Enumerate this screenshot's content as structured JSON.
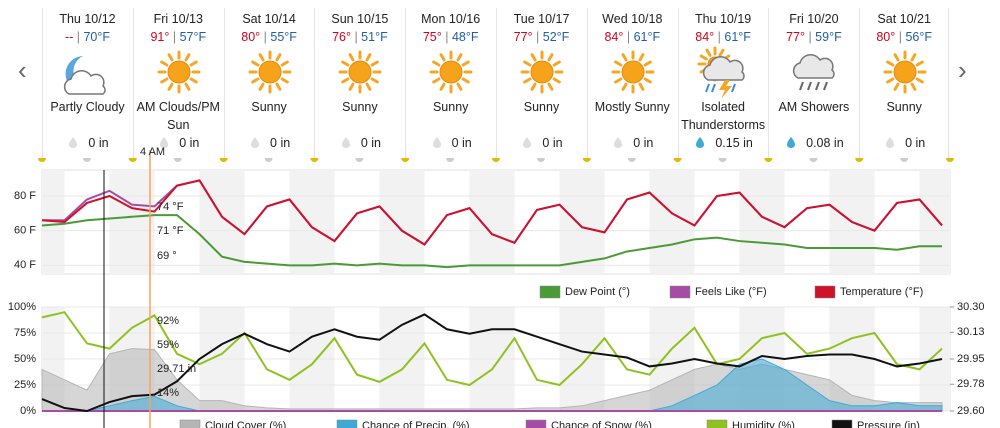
{
  "days": [
    {
      "date": "Thu 10/12",
      "high": "--",
      "low": "70°F",
      "condition": "Partly Cloudy",
      "precip": "0 in"
    },
    {
      "date": "Fri 10/13",
      "high": "91°",
      "low": "57°F",
      "condition": "AM Clouds/PM Sun",
      "precip": "0 in"
    },
    {
      "date": "Sat 10/14",
      "high": "80°",
      "low": "55°F",
      "condition": "Sunny",
      "precip": "0 in"
    },
    {
      "date": "Sun 10/15",
      "high": "76°",
      "low": "51°F",
      "condition": "Sunny",
      "precip": "0 in"
    },
    {
      "date": "Mon 10/16",
      "high": "75°",
      "low": "48°F",
      "condition": "Sunny",
      "precip": "0 in"
    },
    {
      "date": "Tue 10/17",
      "high": "77°",
      "low": "52°F",
      "condition": "Sunny",
      "precip": "0 in"
    },
    {
      "date": "Wed 10/18",
      "high": "84°",
      "low": "61°F",
      "condition": "Mostly Sunny",
      "precip": "0 in"
    },
    {
      "date": "Thu 10/19",
      "high": "84°",
      "low": "61°F",
      "condition": "Isolated Thunderstorms",
      "precip": "0.15 in"
    },
    {
      "date": "Fri 10/20",
      "high": "77°",
      "low": "59°F",
      "condition": "AM Showers",
      "precip": "0.08 in"
    },
    {
      "date": "Sat 10/21",
      "high": "80°",
      "low": "56°F",
      "condition": "Sunny",
      "precip": "0 in"
    }
  ],
  "hover_time": "4 AM",
  "chart_data": [
    {
      "type": "line",
      "ylim": [
        35,
        95
      ],
      "yticks": [
        {
          "value": 40,
          "label": "40 F"
        },
        {
          "value": 60,
          "label": "60 F"
        },
        {
          "value": 80,
          "label": "80 F"
        }
      ],
      "annotations": [
        "74 °F",
        "71 °F",
        "69 °"
      ],
      "series": [
        {
          "name": "Dew Point (°)",
          "color": "#4a9a38",
          "values": [
            63,
            64,
            66,
            67,
            68,
            69,
            69,
            58,
            45,
            42,
            41,
            40,
            40,
            41,
            40,
            41,
            40,
            40,
            39,
            40,
            40,
            40,
            40,
            40,
            42,
            44,
            48,
            50,
            52,
            55,
            56,
            54,
            53,
            52,
            50,
            50,
            50,
            50,
            49,
            51,
            51
          ]
        },
        {
          "name": "Feels Like (°F)",
          "color": "#a64ca6",
          "values": [
            66,
            66,
            78,
            83,
            75,
            74,
            86,
            89,
            68,
            58,
            74,
            78,
            62,
            54,
            70,
            74,
            60,
            52,
            69,
            73,
            58,
            53,
            72,
            75,
            62,
            59,
            78,
            82,
            70,
            63,
            80,
            82,
            68,
            62,
            73,
            75,
            65,
            60,
            76,
            78,
            63
          ]
        },
        {
          "name": "Temperature (°F)",
          "color": "#d0112b",
          "values": [
            66,
            65,
            76,
            80,
            73,
            71,
            86,
            89,
            68,
            58,
            74,
            78,
            62,
            54,
            70,
            74,
            60,
            52,
            69,
            73,
            58,
            53,
            72,
            75,
            62,
            59,
            78,
            82,
            70,
            63,
            80,
            82,
            68,
            62,
            73,
            75,
            65,
            60,
            76,
            78,
            63
          ]
        }
      ]
    },
    {
      "type": "line",
      "ylim": [
        0,
        100
      ],
      "yticks": [
        {
          "value": 0,
          "label": "0%"
        },
        {
          "value": 25,
          "label": "25%"
        },
        {
          "value": 50,
          "label": "50%"
        },
        {
          "value": 75,
          "label": "75%"
        },
        {
          "value": 100,
          "label": "100%"
        }
      ],
      "y2lim": [
        29.6,
        30.3
      ],
      "y2ticks": [
        {
          "value": 29.6,
          "label": "29.60"
        },
        29.78,
        29.95,
        30.13,
        {
          "value": 30.3,
          "label": "30.30"
        }
      ],
      "annotations": [
        "92%",
        "59%",
        "29.71 in",
        "14%"
      ],
      "series": [
        {
          "name": "Cloud Cover (%)",
          "color": "#b5b5b5",
          "area": true,
          "values": [
            40,
            30,
            20,
            55,
            60,
            59,
            30,
            10,
            10,
            5,
            3,
            2,
            2,
            2,
            2,
            2,
            2,
            2,
            2,
            2,
            2,
            2,
            3,
            3,
            5,
            10,
            15,
            20,
            30,
            40,
            45,
            40,
            45,
            40,
            35,
            30,
            15,
            10,
            8,
            8,
            8
          ]
        },
        {
          "name": "Chance of Precip. (%)",
          "color": "#3fa9d6",
          "area": true,
          "values": [
            0,
            0,
            0,
            5,
            10,
            14,
            5,
            0,
            0,
            0,
            0,
            0,
            0,
            0,
            0,
            0,
            0,
            0,
            0,
            0,
            0,
            0,
            0,
            0,
            0,
            0,
            0,
            0,
            5,
            15,
            25,
            45,
            50,
            40,
            25,
            10,
            5,
            5,
            8,
            5,
            5
          ]
        },
        {
          "name": "Chance of Snow (%)",
          "color": "#a64ca6",
          "values": [
            0,
            0,
            0,
            0,
            0,
            0,
            0,
            0,
            0,
            0,
            0,
            0,
            0,
            0,
            0,
            0,
            0,
            0,
            0,
            0,
            0,
            0,
            0,
            0,
            0,
            0,
            0,
            0,
            0,
            0,
            0,
            0,
            0,
            0,
            0,
            0,
            0,
            0,
            0,
            0,
            0
          ]
        },
        {
          "name": "Humidity (%)",
          "color": "#8dc21f",
          "values": [
            90,
            95,
            65,
            60,
            80,
            92,
            55,
            45,
            55,
            75,
            40,
            30,
            45,
            70,
            35,
            28,
            40,
            65,
            30,
            25,
            40,
            70,
            30,
            25,
            45,
            70,
            40,
            35,
            60,
            80,
            45,
            50,
            70,
            75,
            55,
            60,
            70,
            75,
            45,
            40,
            60
          ]
        },
        {
          "name": "Pressure (in)",
          "color": "#111111",
          "axis": "y2",
          "values": [
            29.68,
            29.62,
            29.6,
            29.66,
            29.7,
            29.71,
            29.8,
            29.95,
            30.05,
            30.12,
            30.05,
            30,
            30.1,
            30.15,
            30.1,
            30.08,
            30.18,
            30.25,
            30.15,
            30.12,
            30.15,
            30.15,
            30.1,
            30.05,
            30,
            29.98,
            29.96,
            29.9,
            29.92,
            29.95,
            29.92,
            29.9,
            29.97,
            29.95,
            29.97,
            29.98,
            29.98,
            29.95,
            29.9,
            29.92,
            29.95
          ]
        }
      ]
    }
  ]
}
